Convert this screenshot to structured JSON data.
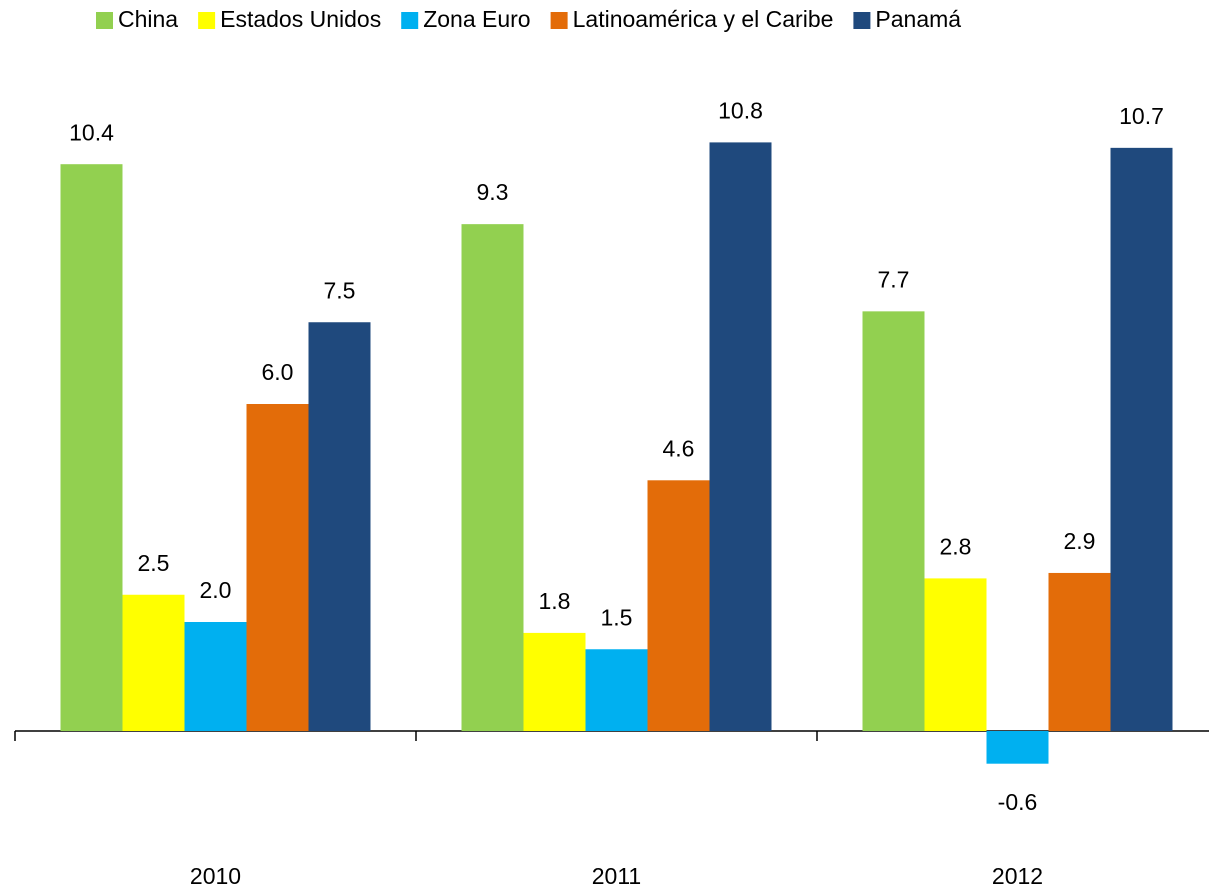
{
  "chart_data": {
    "type": "bar",
    "categories": [
      "2010",
      "2011",
      "2012"
    ],
    "series": [
      {
        "name": "China",
        "color": "#92d050",
        "values": [
          10.4,
          9.3,
          7.7
        ],
        "value_labels": [
          "10.4",
          "9.3",
          "7.7"
        ]
      },
      {
        "name": "Estados Unidos",
        "color": "#ffff00",
        "values": [
          2.5,
          1.8,
          2.8
        ],
        "value_labels": [
          "2.5",
          "1.8",
          "2.8"
        ]
      },
      {
        "name": "Zona Euro",
        "color": "#00b0f0",
        "values": [
          2.0,
          1.5,
          -0.6
        ],
        "value_labels": [
          "2.0",
          "1.5",
          "-0.6"
        ]
      },
      {
        "name": "Latinoamérica y el Caribe",
        "color": "#e36c09",
        "values": [
          6.0,
          4.6,
          2.9
        ],
        "value_labels": [
          "6.0",
          "4.6",
          "2.9"
        ]
      },
      {
        "name": "Panamá",
        "color": "#1f497d",
        "values": [
          7.5,
          10.8,
          10.7
        ],
        "value_labels": [
          "7.5",
          "10.8",
          "10.7"
        ]
      }
    ],
    "legend": "top"
  }
}
